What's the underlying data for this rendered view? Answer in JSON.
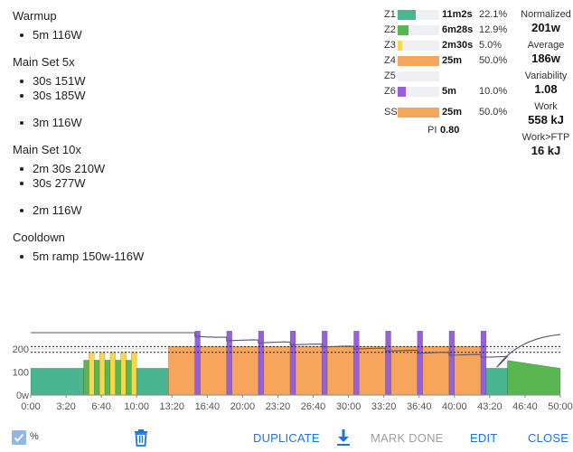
{
  "workout": {
    "sections": [
      {
        "title": "Warmup",
        "items": [
          {
            "text": "5m 116W",
            "gap": false
          }
        ]
      },
      {
        "title": "Main Set 5x",
        "items": [
          {
            "text": "30s 151W",
            "gap": false
          },
          {
            "text": "30s 185W",
            "gap": false
          },
          {
            "text": "3m 116W",
            "gap": true
          }
        ]
      },
      {
        "title": "Main Set 10x",
        "items": [
          {
            "text": "2m 30s 210W",
            "gap": false
          },
          {
            "text": "30s 277W",
            "gap": false
          },
          {
            "text": "2m 116W",
            "gap": true
          }
        ]
      },
      {
        "title": "Cooldown",
        "items": [
          {
            "text": "5m ramp 150w-116W",
            "gap": false
          }
        ]
      }
    ]
  },
  "zones": [
    {
      "name": "Z1",
      "time": "11m2s",
      "pct": "22.1%",
      "fill": 0.442,
      "color": "#4bb591"
    },
    {
      "name": "Z2",
      "time": "6m28s",
      "pct": "12.9%",
      "fill": 0.258,
      "color": "#5ab650"
    },
    {
      "name": "Z3",
      "time": "2m30s",
      "pct": "5.0%",
      "fill": 0.1,
      "color": "#f6d84a"
    },
    {
      "name": "Z4",
      "time": "25m",
      "pct": "50.0%",
      "fill": 1.0,
      "color": "#f7a55c"
    },
    {
      "name": "Z5",
      "time": "",
      "pct": "",
      "fill": 0,
      "color": "#e06666"
    },
    {
      "name": "Z6",
      "time": "5m",
      "pct": "10.0%",
      "fill": 0.2,
      "color": "#9560d8"
    },
    {
      "name": "SS",
      "time": "25m",
      "pct": "50.0%",
      "fill": 1.0,
      "color": "#f7a55c"
    }
  ],
  "pi": {
    "label": "PI",
    "value": "0.80"
  },
  "stats": [
    {
      "label": "Normalized",
      "value": "201w"
    },
    {
      "label": "Average",
      "value": "186w"
    },
    {
      "label": "Variability",
      "value": "1.08"
    },
    {
      "label": "Work",
      "value": "558 kJ"
    },
    {
      "label": "Work>FTP",
      "value": "16 kJ"
    }
  ],
  "chart_data": {
    "type": "area",
    "xlim": [
      0,
      50
    ],
    "ylim": [
      0,
      270
    ],
    "yticks": [
      {
        "v": 0,
        "label": "0w"
      },
      {
        "v": 100,
        "label": "100"
      },
      {
        "v": 200,
        "label": "200"
      }
    ],
    "xtick_labels": [
      "0:00",
      "3:20",
      "6:40",
      "10:00",
      "13:20",
      "16:40",
      "20:00",
      "23:20",
      "26:40",
      "30:00",
      "33:20",
      "36:40",
      "40:00",
      "43:20",
      "46:40",
      "50:00"
    ],
    "dotted_lines": [
      185,
      210
    ],
    "colors": {
      "z1": "#4bb591",
      "z2": "#5ab650",
      "z3": "#f6d84a",
      "z4": "#f7a55c",
      "z6": "#9560d8",
      "line": "#555577"
    }
  },
  "toolbar": {
    "pct_label": "%",
    "duplicate": "DUPLICATE",
    "mark_done": "MARK DONE",
    "edit": "EDIT",
    "close": "CLOSE"
  }
}
